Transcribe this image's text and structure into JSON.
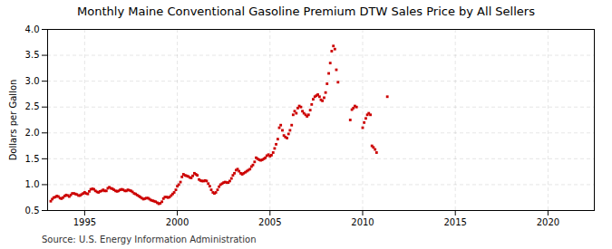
{
  "chart_data": {
    "type": "scatter",
    "title": "Monthly Maine Conventional Gasoline Premium DTW Sales Price by All Sellers",
    "ylabel": "Dollars per Gallon",
    "source": "Source: U.S. Energy Information Administration",
    "color": "#cc0000",
    "marker": "square",
    "grid": true,
    "xlim": [
      1993.0,
      2022.5
    ],
    "xticks": [
      1995,
      2000,
      2005,
      2010,
      2015,
      2020
    ],
    "ylim": [
      0.5,
      4.0
    ],
    "yticks": [
      0.5,
      {
        "value": 1.0,
        "label": "1.0"
      },
      1.5,
      {
        "value": 2.0,
        "label": "2.0"
      },
      2.5,
      {
        "value": 3.0,
        "label": "3.0"
      },
      3.5,
      {
        "value": 4.0,
        "label": "4.0"
      }
    ],
    "x": [
      1993.17,
      1993.25,
      1993.33,
      1993.42,
      1993.5,
      1993.58,
      1993.67,
      1993.75,
      1993.83,
      1993.92,
      1994.0,
      1994.08,
      1994.17,
      1994.25,
      1994.33,
      1994.42,
      1994.5,
      1994.58,
      1994.67,
      1994.75,
      1994.83,
      1994.92,
      1995.0,
      1995.08,
      1995.17,
      1995.25,
      1995.33,
      1995.42,
      1995.5,
      1995.58,
      1995.67,
      1995.75,
      1995.83,
      1995.92,
      1996.0,
      1996.08,
      1996.17,
      1996.25,
      1996.33,
      1996.42,
      1996.5,
      1996.58,
      1996.67,
      1996.75,
      1996.83,
      1996.92,
      1997.0,
      1997.08,
      1997.17,
      1997.25,
      1997.33,
      1997.42,
      1997.5,
      1997.58,
      1997.67,
      1997.75,
      1997.83,
      1997.92,
      1998.0,
      1998.08,
      1998.17,
      1998.25,
      1998.33,
      1998.42,
      1998.5,
      1998.58,
      1998.67,
      1998.75,
      1998.83,
      1998.92,
      1999.0,
      1999.08,
      1999.17,
      1999.25,
      1999.33,
      1999.42,
      1999.5,
      1999.58,
      1999.67,
      1999.75,
      1999.83,
      1999.92,
      2000.0,
      2000.08,
      2000.17,
      2000.25,
      2000.33,
      2000.42,
      2000.5,
      2000.58,
      2000.67,
      2000.75,
      2000.83,
      2000.92,
      2001.0,
      2001.08,
      2001.17,
      2001.25,
      2001.33,
      2001.42,
      2001.5,
      2001.58,
      2001.67,
      2001.75,
      2001.83,
      2001.92,
      2002.0,
      2002.08,
      2002.17,
      2002.25,
      2002.33,
      2002.42,
      2002.5,
      2002.58,
      2002.67,
      2002.75,
      2002.83,
      2002.92,
      2003.0,
      2003.08,
      2003.17,
      2003.25,
      2003.33,
      2003.42,
      2003.5,
      2003.58,
      2003.67,
      2003.75,
      2003.83,
      2003.92,
      2004.0,
      2004.08,
      2004.17,
      2004.25,
      2004.33,
      2004.42,
      2004.5,
      2004.58,
      2004.67,
      2004.75,
      2004.83,
      2004.92,
      2005.0,
      2005.08,
      2005.17,
      2005.25,
      2005.33,
      2005.42,
      2005.5,
      2005.58,
      2005.67,
      2005.75,
      2005.83,
      2005.92,
      2006.0,
      2006.08,
      2006.17,
      2006.25,
      2006.33,
      2006.42,
      2006.5,
      2006.58,
      2006.67,
      2006.75,
      2006.83,
      2006.92,
      2007.0,
      2007.08,
      2007.17,
      2007.25,
      2007.33,
      2007.42,
      2007.5,
      2007.58,
      2007.67,
      2007.75,
      2007.83,
      2007.92,
      2008.0,
      2008.08,
      2008.17,
      2008.25,
      2008.33,
      2008.42,
      2008.5,
      2008.58,
      2008.67,
      2009.33,
      2009.42,
      2009.5,
      2009.58,
      2009.67,
      2010.0,
      2010.08,
      2010.17,
      2010.25,
      2010.33,
      2010.42,
      2010.5,
      2010.58,
      2010.67,
      2010.75,
      2011.33
    ],
    "values": [
      0.68,
      0.72,
      0.75,
      0.76,
      0.78,
      0.77,
      0.74,
      0.73,
      0.75,
      0.78,
      0.8,
      0.79,
      0.77,
      0.8,
      0.83,
      0.83,
      0.82,
      0.81,
      0.79,
      0.79,
      0.81,
      0.83,
      0.85,
      0.83,
      0.82,
      0.87,
      0.91,
      0.92,
      0.91,
      0.88,
      0.86,
      0.85,
      0.87,
      0.88,
      0.9,
      0.88,
      0.88,
      0.93,
      0.95,
      0.93,
      0.92,
      0.9,
      0.88,
      0.87,
      0.88,
      0.9,
      0.91,
      0.9,
      0.88,
      0.88,
      0.9,
      0.89,
      0.88,
      0.86,
      0.83,
      0.82,
      0.8,
      0.78,
      0.76,
      0.74,
      0.72,
      0.73,
      0.74,
      0.74,
      0.72,
      0.7,
      0.69,
      0.68,
      0.67,
      0.65,
      0.63,
      0.64,
      0.67,
      0.73,
      0.76,
      0.76,
      0.75,
      0.76,
      0.79,
      0.82,
      0.85,
      0.9,
      0.97,
      1.0,
      1.05,
      1.15,
      1.2,
      1.18,
      1.17,
      1.16,
      1.14,
      1.13,
      1.17,
      1.22,
      1.2,
      1.18,
      1.1,
      1.08,
      1.07,
      1.07,
      1.08,
      1.07,
      1.02,
      0.97,
      0.9,
      0.85,
      0.83,
      0.85,
      0.9,
      0.96,
      1.0,
      1.02,
      1.04,
      1.05,
      1.04,
      1.04,
      1.07,
      1.12,
      1.18,
      1.22,
      1.28,
      1.3,
      1.26,
      1.22,
      1.2,
      1.22,
      1.24,
      1.26,
      1.28,
      1.3,
      1.35,
      1.38,
      1.44,
      1.52,
      1.5,
      1.48,
      1.47,
      1.48,
      1.5,
      1.52,
      1.56,
      1.58,
      1.55,
      1.57,
      1.62,
      1.7,
      1.78,
      1.88,
      2.1,
      2.15,
      2.05,
      1.95,
      1.92,
      1.9,
      1.98,
      2.05,
      2.15,
      2.35,
      2.42,
      2.38,
      2.48,
      2.52,
      2.5,
      2.42,
      2.38,
      2.35,
      2.32,
      2.35,
      2.44,
      2.55,
      2.65,
      2.7,
      2.72,
      2.74,
      2.7,
      2.64,
      2.62,
      2.68,
      2.78,
      2.95,
      3.15,
      3.35,
      3.58,
      3.68,
      3.62,
      3.22,
      2.98,
      2.25,
      2.45,
      2.48,
      2.52,
      2.5,
      2.1,
      2.2,
      2.28,
      2.35,
      2.38,
      2.35,
      1.75,
      1.72,
      1.68,
      1.62,
      2.7
    ]
  }
}
